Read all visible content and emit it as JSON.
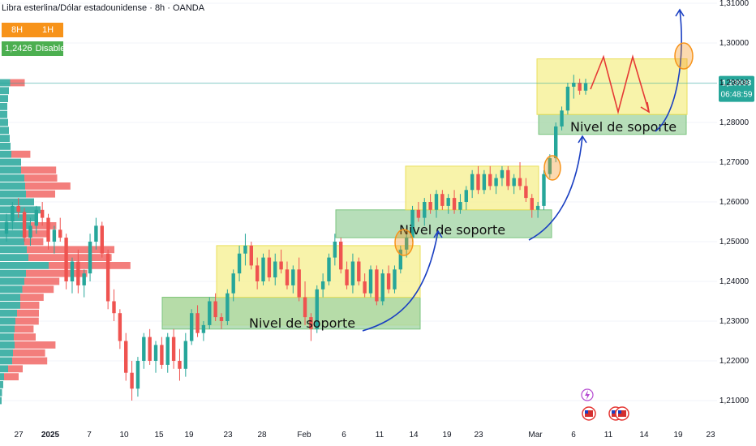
{
  "header": {
    "symbol": "Libra esterlina/Dólar estadounidense · 8h · OANDA",
    "tf_left": "8H",
    "tf_right": "1H",
    "value": "1,2426",
    "status": "Disabled"
  },
  "price_tag": {
    "price": "1,28988",
    "countdown": "06:48:59"
  },
  "chart_data": {
    "type": "candlestick",
    "series_name": "GBP/USD",
    "yticks": [
      "1,31000",
      "1,30000",
      "1,29000",
      "1,28000",
      "1,27000",
      "1,26000",
      "1,25000",
      "1,24000",
      "1,23000",
      "1,22000",
      "1,21000"
    ],
    "xticks": [
      "27",
      "2025",
      "7",
      "10",
      "15",
      "19",
      "23",
      "28",
      "Feb",
      "6",
      "11",
      "14",
      "19",
      "23",
      "Mar",
      "6",
      "11",
      "14",
      "19",
      "23"
    ],
    "ylim": [
      1.205,
      1.311
    ],
    "ohlc": [
      [
        1.252,
        1.257,
        1.25,
        1.255
      ],
      [
        1.255,
        1.26,
        1.253,
        1.259
      ],
      [
        1.259,
        1.261,
        1.256,
        1.2575
      ],
      [
        1.2575,
        1.2585,
        1.25,
        1.251
      ],
      [
        1.251,
        1.256,
        1.249,
        1.254
      ],
      [
        1.254,
        1.259,
        1.252,
        1.258
      ],
      [
        1.258,
        1.26,
        1.254,
        1.256
      ],
      [
        1.256,
        1.257,
        1.248,
        1.25
      ],
      [
        1.25,
        1.254,
        1.247,
        1.253
      ],
      [
        1.253,
        1.256,
        1.25,
        1.251
      ],
      [
        1.251,
        1.252,
        1.238,
        1.24
      ],
      [
        1.24,
        1.246,
        1.237,
        1.245
      ],
      [
        1.245,
        1.248,
        1.237,
        1.239
      ],
      [
        1.239,
        1.243,
        1.236,
        1.242
      ],
      [
        1.242,
        1.252,
        1.24,
        1.25
      ],
      [
        1.25,
        1.256,
        1.248,
        1.254
      ],
      [
        1.254,
        1.255,
        1.246,
        1.247
      ],
      [
        1.247,
        1.248,
        1.233,
        1.235
      ],
      [
        1.235,
        1.238,
        1.23,
        1.232
      ],
      [
        1.232,
        1.233,
        1.223,
        1.225
      ],
      [
        1.225,
        1.227,
        1.215,
        1.217
      ],
      [
        1.217,
        1.22,
        1.21,
        1.213
      ],
      [
        1.213,
        1.221,
        1.211,
        1.22
      ],
      [
        1.22,
        1.227,
        1.218,
        1.226
      ],
      [
        1.226,
        1.228,
        1.219,
        1.22
      ],
      [
        1.22,
        1.225,
        1.217,
        1.224
      ],
      [
        1.224,
        1.226,
        1.218,
        1.219
      ],
      [
        1.219,
        1.227,
        1.217,
        1.226
      ],
      [
        1.226,
        1.228,
        1.218,
        1.22
      ],
      [
        1.22,
        1.223,
        1.215,
        1.218
      ],
      [
        1.218,
        1.227,
        1.216,
        1.225
      ],
      [
        1.225,
        1.233,
        1.224,
        1.232
      ],
      [
        1.232,
        1.234,
        1.226,
        1.227
      ],
      [
        1.227,
        1.23,
        1.225,
        1.229
      ],
      [
        1.229,
        1.236,
        1.228,
        1.235
      ],
      [
        1.235,
        1.237,
        1.23,
        1.231
      ],
      [
        1.231,
        1.232,
        1.228,
        1.23
      ],
      [
        1.23,
        1.238,
        1.229,
        1.237
      ],
      [
        1.237,
        1.243,
        1.235,
        1.242
      ],
      [
        1.242,
        1.249,
        1.24,
        1.247
      ],
      [
        1.247,
        1.252,
        1.244,
        1.249
      ],
      [
        1.249,
        1.25,
        1.243,
        1.244
      ],
      [
        1.244,
        1.246,
        1.238,
        1.24
      ],
      [
        1.24,
        1.247,
        1.239,
        1.246
      ],
      [
        1.246,
        1.248,
        1.24,
        1.241
      ],
      [
        1.241,
        1.247,
        1.239,
        1.245
      ],
      [
        1.245,
        1.248,
        1.242,
        1.243
      ],
      [
        1.243,
        1.245,
        1.238,
        1.239
      ],
      [
        1.239,
        1.244,
        1.237,
        1.243
      ],
      [
        1.243,
        1.246,
        1.235,
        1.236
      ],
      [
        1.236,
        1.24,
        1.229,
        1.231
      ],
      [
        1.231,
        1.232,
        1.225,
        1.228
      ],
      [
        1.228,
        1.239,
        1.227,
        1.238
      ],
      [
        1.238,
        1.242,
        1.236,
        1.24
      ],
      [
        1.24,
        1.247,
        1.239,
        1.246
      ],
      [
        1.246,
        1.252,
        1.244,
        1.25
      ],
      [
        1.25,
        1.251,
        1.242,
        1.243
      ],
      [
        1.243,
        1.245,
        1.238,
        1.239
      ],
      [
        1.239,
        1.247,
        1.237,
        1.245
      ],
      [
        1.245,
        1.246,
        1.239,
        1.24
      ],
      [
        1.24,
        1.242,
        1.236,
        1.237
      ],
      [
        1.237,
        1.244,
        1.236,
        1.243
      ],
      [
        1.243,
        1.244,
        1.234,
        1.235
      ],
      [
        1.235,
        1.243,
        1.234,
        1.242
      ],
      [
        1.242,
        1.244,
        1.237,
        1.238
      ],
      [
        1.238,
        1.244,
        1.237,
        1.243
      ],
      [
        1.243,
        1.249,
        1.242,
        1.248
      ],
      [
        1.248,
        1.253,
        1.246,
        1.251
      ],
      [
        1.251,
        1.259,
        1.25,
        1.258
      ],
      [
        1.258,
        1.26,
        1.255,
        1.256
      ],
      [
        1.256,
        1.261,
        1.254,
        1.26
      ],
      [
        1.26,
        1.262,
        1.257,
        1.258
      ],
      [
        1.258,
        1.263,
        1.256,
        1.262
      ],
      [
        1.262,
        1.263,
        1.258,
        1.259
      ],
      [
        1.259,
        1.262,
        1.257,
        1.261
      ],
      [
        1.261,
        1.263,
        1.257,
        1.258
      ],
      [
        1.258,
        1.262,
        1.257,
        1.26
      ],
      [
        1.26,
        1.264,
        1.258,
        1.263
      ],
      [
        1.263,
        1.268,
        1.261,
        1.267
      ],
      [
        1.267,
        1.269,
        1.262,
        1.263
      ],
      [
        1.263,
        1.268,
        1.262,
        1.267
      ],
      [
        1.267,
        1.269,
        1.263,
        1.264
      ],
      [
        1.264,
        1.267,
        1.262,
        1.266
      ],
      [
        1.266,
        1.269,
        1.264,
        1.268
      ],
      [
        1.268,
        1.269,
        1.263,
        1.264
      ],
      [
        1.264,
        1.267,
        1.262,
        1.266
      ],
      [
        1.266,
        1.27,
        1.263,
        1.264
      ],
      [
        1.264,
        1.266,
        1.26,
        1.261
      ],
      [
        1.261,
        1.262,
        1.256,
        1.258
      ],
      [
        1.258,
        1.26,
        1.256,
        1.259
      ],
      [
        1.259,
        1.268,
        1.258,
        1.267
      ],
      [
        1.267,
        1.272,
        1.266,
        1.271
      ],
      [
        1.271,
        1.28,
        1.27,
        1.279
      ],
      [
        1.279,
        1.284,
        1.278,
        1.283
      ],
      [
        1.283,
        1.29,
        1.282,
        1.289
      ],
      [
        1.289,
        1.292,
        1.286,
        1.29
      ],
      [
        1.29,
        1.291,
        1.287,
        1.288
      ],
      [
        1.288,
        1.291,
        1.287,
        1.2899
      ]
    ],
    "zones": [
      {
        "kind": "yellow",
        "x0": 200,
        "x1": 518,
        "y0": 1.229,
        "y1": 1.236
      },
      {
        "kind": "green",
        "x0": 200,
        "x1": 518,
        "y0": 1.228,
        "y1": 1.236
      },
      {
        "kind": "yellow",
        "x0": 267,
        "x1": 518,
        "y0": 1.236,
        "y1": 1.249
      },
      {
        "kind": "green",
        "x0": 414,
        "x1": 680,
        "y0": 1.251,
        "y1": 1.258
      },
      {
        "kind": "yellow",
        "x0": 500,
        "x1": 664,
        "y0": 1.258,
        "y1": 1.269
      },
      {
        "kind": "green",
        "x0": 664,
        "x1": 846,
        "y0": 1.277,
        "y1": 1.282
      },
      {
        "kind": "yellow",
        "x0": 662,
        "x1": 847,
        "y0": 1.282,
        "y1": 1.296
      }
    ],
    "annotations": [
      "Nivel de soporte",
      "Nivel de soporte",
      "Nivel de soporte"
    ],
    "volume_profile": [
      {
        "price": 1.29,
        "up": 25,
        "down": 20
      },
      {
        "price": 1.288,
        "up": 22,
        "down": 0
      },
      {
        "price": 1.286,
        "up": 20,
        "down": 0
      },
      {
        "price": 1.284,
        "up": 18,
        "down": 0
      },
      {
        "price": 1.282,
        "up": 18,
        "down": 0
      },
      {
        "price": 1.28,
        "up": 20,
        "down": 0
      },
      {
        "price": 1.278,
        "up": 22,
        "down": 0
      },
      {
        "price": 1.276,
        "up": 24,
        "down": 0
      },
      {
        "price": 1.274,
        "up": 26,
        "down": 0
      },
      {
        "price": 1.272,
        "up": 28,
        "down": 26
      },
      {
        "price": 1.27,
        "up": 52,
        "down": 0
      },
      {
        "price": 1.268,
        "up": 52,
        "down": 48
      },
      {
        "price": 1.266,
        "up": 60,
        "down": 45
      },
      {
        "price": 1.264,
        "up": 62,
        "down": 62
      },
      {
        "price": 1.262,
        "up": 64,
        "down": 40
      },
      {
        "price": 1.26,
        "up": 84,
        "down": 0
      },
      {
        "price": 1.258,
        "up": 100,
        "down": 0
      },
      {
        "price": 1.256,
        "up": 90,
        "down": 0
      },
      {
        "price": 1.254,
        "up": 74,
        "down": 36
      },
      {
        "price": 1.252,
        "up": 62,
        "down": 32
      },
      {
        "price": 1.25,
        "up": 60,
        "down": 26
      },
      {
        "price": 1.248,
        "up": 66,
        "down": 120
      },
      {
        "price": 1.246,
        "up": 70,
        "down": 114
      },
      {
        "price": 1.244,
        "up": 120,
        "down": 112
      },
      {
        "price": 1.242,
        "up": 64,
        "down": 84
      },
      {
        "price": 1.24,
        "up": 60,
        "down": 48
      },
      {
        "price": 1.238,
        "up": 55,
        "down": 43
      },
      {
        "price": 1.236,
        "up": 50,
        "down": 32
      },
      {
        "price": 1.234,
        "up": 50,
        "down": 26
      },
      {
        "price": 1.232,
        "up": 42,
        "down": 30
      },
      {
        "price": 1.23,
        "up": 38,
        "down": 32
      },
      {
        "price": 1.228,
        "up": 36,
        "down": 26
      },
      {
        "price": 1.226,
        "up": 34,
        "down": 30
      },
      {
        "price": 1.224,
        "up": 36,
        "down": 56
      },
      {
        "price": 1.222,
        "up": 32,
        "down": 44
      },
      {
        "price": 1.22,
        "up": 30,
        "down": 48
      },
      {
        "price": 1.218,
        "up": 20,
        "down": 20
      },
      {
        "price": 1.216,
        "up": 10,
        "down": 20
      },
      {
        "price": 1.214,
        "up": 8,
        "down": 0
      },
      {
        "price": 1.212,
        "up": 5,
        "down": 0
      },
      {
        "price": 1.21,
        "up": 4,
        "down": 0
      }
    ],
    "last_price": 1.28988
  },
  "colors": {
    "up": "#26a69a",
    "down": "#ef5350",
    "zone_yellow": "#f6ef8e",
    "zone_green": "#a5d6a7",
    "arrow_blue": "#1a3fc2",
    "projection_red": "#e53935",
    "highlight_orange": "#f7931a"
  }
}
